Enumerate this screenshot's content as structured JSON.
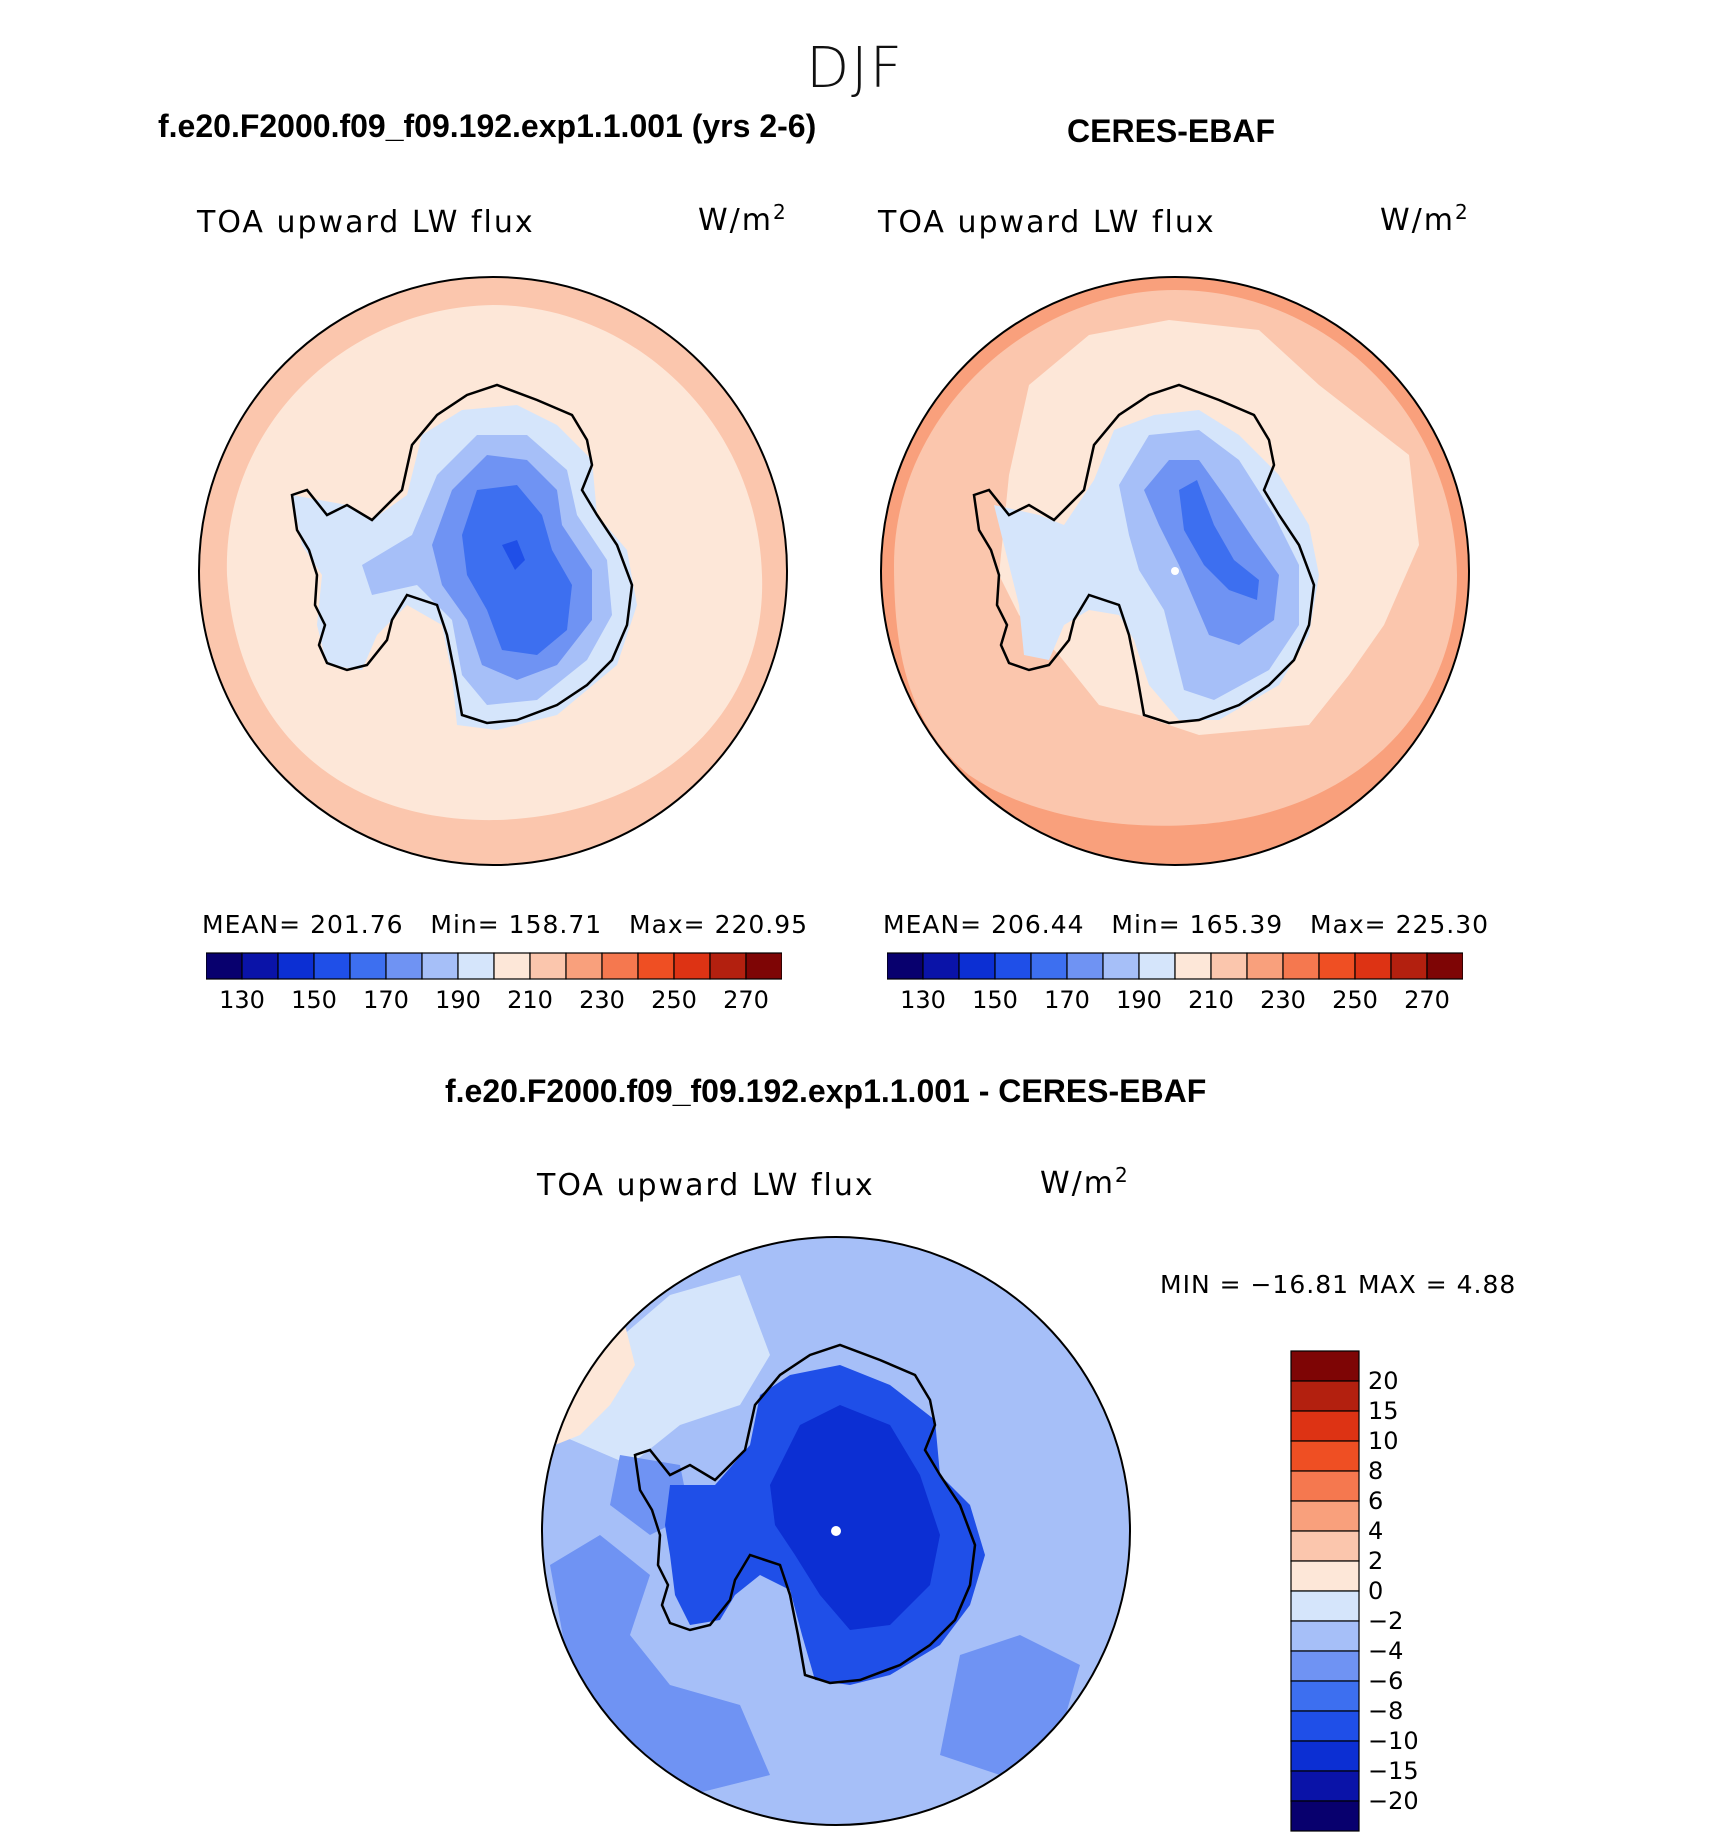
{
  "figure": {
    "season": "DJF",
    "units_base": "W/m",
    "units_sup": "2"
  },
  "panels": [
    {
      "title": "f.e20.F2000.f09_f09.192.exp1.1.001 (yrs 2-6)",
      "variable": "TOA upward LW flux",
      "stats": {
        "mean_label": "MEAN=",
        "mean": "201.76",
        "min_label": "Min=",
        "min": "158.71",
        "max_label": "Max=",
        "max": "220.95"
      }
    },
    {
      "title": "CERES-EBAF",
      "variable": "TOA upward LW flux",
      "stats": {
        "mean_label": "MEAN=",
        "mean": "206.44",
        "min_label": "Min=",
        "min": "165.39",
        "max_label": "Max=",
        "max": "225.30"
      }
    },
    {
      "title": "f.e20.F2000.f09_f09.192.exp1.1.001 - CERES-EBAF",
      "variable": "TOA upward LW flux",
      "stats_text": "MIN = −16.81 MAX =    4.88"
    }
  ],
  "chart_data": [
    {
      "type": "heatmap",
      "projection": "south-polar-stereographic",
      "colorbar_ticks": [
        "130",
        "150",
        "170",
        "190",
        "210",
        "230",
        "250",
        "270"
      ],
      "colorbar_colors": [
        "#08006e",
        "#0a13a8",
        "#0c2fd3",
        "#1f4fe8",
        "#3d6ff0",
        "#6f93f3",
        "#a6bff8",
        "#d5e5fb",
        "#fde7d8",
        "#fbc6ad",
        "#f9a07c",
        "#f5784f",
        "#ef4f23",
        "#dd3314",
        "#b3200f",
        "#7e0505"
      ],
      "field_colors": {
        "ocean_outer": "#fbc6ad",
        "ocean_inner": "#fde7d8",
        "coast": "#d5e5fb",
        "l1": "#a6bff8",
        "l2": "#6f93f3",
        "l3": "#3d6ff0",
        "min": "#1f4fe8"
      }
    },
    {
      "type": "heatmap",
      "projection": "south-polar-stereographic",
      "colorbar_ticks": [
        "130",
        "150",
        "170",
        "190",
        "210",
        "230",
        "250",
        "270"
      ],
      "colorbar_colors": [
        "#08006e",
        "#0a13a8",
        "#0c2fd3",
        "#1f4fe8",
        "#3d6ff0",
        "#6f93f3",
        "#a6bff8",
        "#d5e5fb",
        "#fde7d8",
        "#fbc6ad",
        "#f9a07c",
        "#f5784f",
        "#ef4f23",
        "#dd3314",
        "#b3200f",
        "#7e0505"
      ],
      "field_colors": {
        "ocean_outer": "#f9a07c",
        "ocean_mid": "#fbc6ad",
        "ocean_inner": "#fde7d8",
        "coast": "#d5e5fb",
        "l1": "#a6bff8",
        "l2": "#6f93f3",
        "l3": "#3d6ff0"
      }
    },
    {
      "type": "heatmap",
      "projection": "south-polar-stereographic",
      "colorbar_ticks": [
        "20",
        "15",
        "10",
        "8",
        "6",
        "4",
        "2",
        "0",
        "−2",
        "−4",
        "−6",
        "−8",
        "−10",
        "−15",
        "−20"
      ],
      "colorbar_colors": [
        "#7e0505",
        "#b3200f",
        "#dd3314",
        "#ef4f23",
        "#f5784f",
        "#f9a07c",
        "#fbc6ad",
        "#fde7d8",
        "#d5e5fb",
        "#a6bff8",
        "#6f93f3",
        "#3d6ff0",
        "#1f4fe8",
        "#0c2fd3",
        "#0a13a8",
        "#08006e"
      ],
      "field_colors": {
        "ocean": "#a6bff8",
        "ocean_dark": "#6f93f3",
        "warm": "#fde7d8",
        "pale": "#d5e5fb",
        "ice": "#1f4fe8",
        "ice_core": "#0c2fd3"
      }
    }
  ]
}
